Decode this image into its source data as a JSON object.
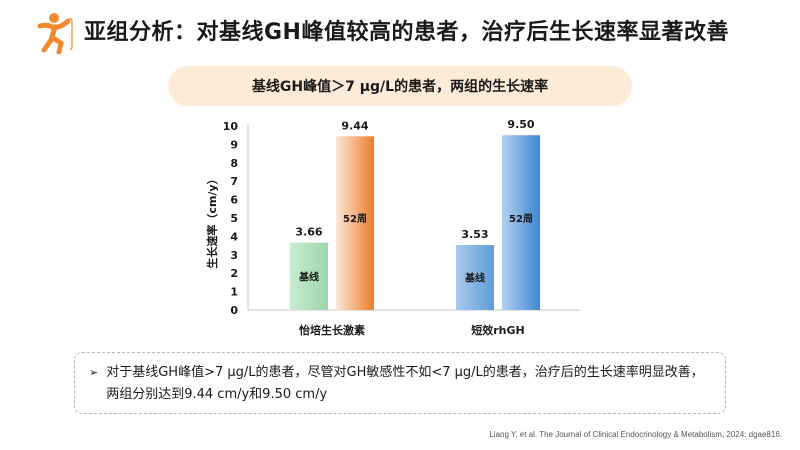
{
  "header": {
    "title": "亚组分析：对基线GH峰值较高的患者，治疗后生长速率显著改善",
    "logo_icon": "running-child-logo-icon"
  },
  "subtitle": "基线GH峰值＞7 μg/L的患者，两组的生长速率",
  "chart_data": {
    "type": "bar",
    "categories": [
      "怡培生长激素",
      "短效rhGH"
    ],
    "series": [
      {
        "name": "基线",
        "values": [
          3.66,
          3.53
        ]
      },
      {
        "name": "52周",
        "values": [
          9.44,
          9.5
        ]
      }
    ],
    "value_labels": [
      [
        "3.66",
        "3.53"
      ],
      [
        "9.44",
        "9.50"
      ]
    ],
    "ylabel": "生长速率（cm/y）",
    "ylim": [
      0,
      10
    ],
    "yticks": [
      "0",
      "1",
      "2",
      "3",
      "4",
      "5",
      "6",
      "7",
      "8",
      "9",
      "10"
    ],
    "grid": false,
    "colors": {
      "baseline_product": "#a8dcb4",
      "week52_product": "#ef8a3e",
      "baseline_rhgh": "#7fb2e0",
      "week52_rhgh": "#4a8fd4"
    }
  },
  "note": {
    "text": "对于基线GH峰值>7 μg/L的患者，尽管对GH敏感性不如<7 μg/L的患者，治疗后的生长速率明显改善，两组分别达到9.44 cm/y和9.50 cm/y"
  },
  "citation": "Liang Y, et al. The Journal of Clinical Endocrinology & Metabolism, 2024: dgae816.",
  "colors": {
    "accent": "#f08a2c",
    "pill_bg": "#fcebd6"
  }
}
